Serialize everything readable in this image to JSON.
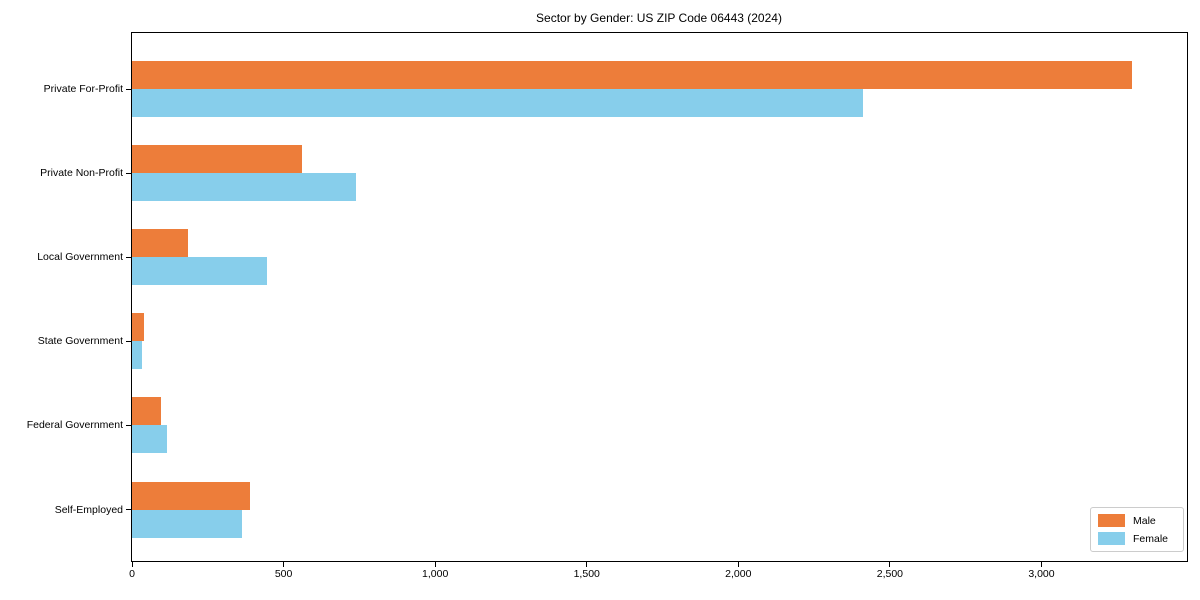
{
  "title": "Sector by Gender: US ZIP Code 06443 (2024)",
  "chart_data": {
    "type": "bar",
    "orientation": "horizontal",
    "title": "Sector by Gender: US ZIP Code 06443 (2024)",
    "categories": [
      "Private For-Profit",
      "Private Non-Profit",
      "Local Government",
      "State Government",
      "Federal Government",
      "Self-Employed"
    ],
    "series": [
      {
        "name": "Male",
        "color": "#ED7D3A",
        "values": [
          3300,
          560,
          185,
          40,
          96,
          390
        ]
      },
      {
        "name": "Female",
        "color": "#87CEEB",
        "values": [
          2410,
          738,
          446,
          32,
          116,
          364
        ]
      }
    ],
    "xlabel": "",
    "ylabel": "",
    "xlim": [
      0,
      3480
    ],
    "xticks": [
      0,
      500,
      1000,
      1500,
      2000,
      2500,
      3000
    ],
    "xtick_labels": [
      "0",
      "500",
      "1,000",
      "1,500",
      "2,000",
      "2,500",
      "3,000"
    ],
    "grid": false,
    "legend_position": "lower right",
    "background": "#ffffff",
    "axis_color": "#000000"
  }
}
